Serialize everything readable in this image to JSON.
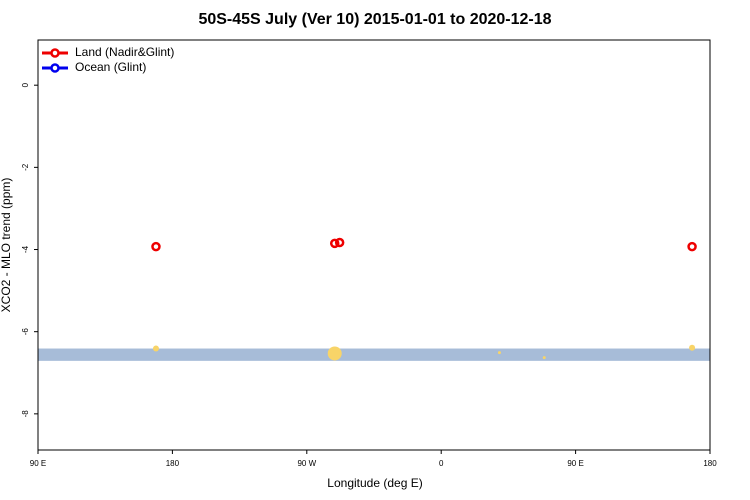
{
  "chart_data": {
    "type": "scatter",
    "title": "50S-45S July (Ver 10)   2015-01-01 to 2020-12-18",
    "xlabel": "Longitude (deg E)",
    "ylabel": "XCO2 - MLO trend (ppm)",
    "xlim": [
      90,
      540
    ],
    "ylim": [
      -8.88,
      1.1
    ],
    "xticks": [
      {
        "value": 90,
        "label": "90 E"
      },
      {
        "value": 180,
        "label": "180"
      },
      {
        "value": 270,
        "label": "90 W"
      },
      {
        "value": 360,
        "label": "0"
      },
      {
        "value": 450,
        "label": "90 E"
      },
      {
        "value": 540,
        "label": "180"
      }
    ],
    "yticks": [
      0,
      -2,
      -4,
      -6,
      -8
    ],
    "legend": "top-left",
    "series": [
      {
        "name": "Land (Nadir&Glint)",
        "color": "#ee0000",
        "x": [
          169,
          288.7,
          292,
          528
        ],
        "values": [
          -3.93,
          -3.85,
          -3.83,
          -3.93
        ]
      },
      {
        "name": "Ocean (Glint)",
        "color": "#0000ee",
        "x": [],
        "values": []
      }
    ],
    "band": {
      "color": "#a7bcd8",
      "values": [
        -6.41,
        -6.71
      ]
    },
    "highlights": {
      "color": "#f8d468",
      "x": [
        169,
        288.7,
        399,
        429,
        528
      ],
      "values": [
        -6.41,
        -6.53,
        -6.51,
        -6.63,
        -6.39
      ],
      "sizes": [
        3,
        7,
        1.5,
        1.5,
        3
      ]
    }
  }
}
